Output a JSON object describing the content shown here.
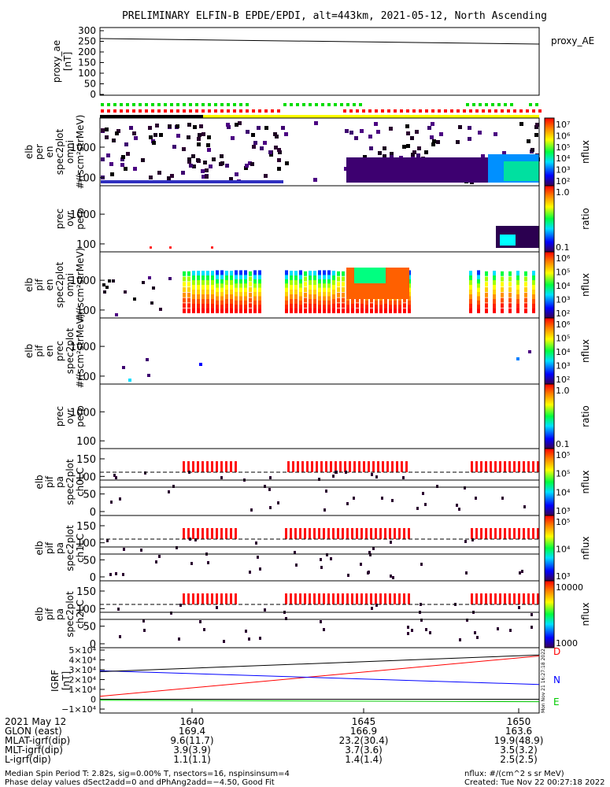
{
  "title": "PRELIMINARY ELFIN-B EPDE/EPDI, alt=443km, 2021-05-12, North Ascending",
  "panels": {
    "ae": {
      "ylabel": [
        "proxy_ae",
        "[nT]"
      ],
      "ticks": [
        "300",
        "250",
        "200",
        "150",
        "100",
        "50",
        "0"
      ],
      "legend": "proxy_AE"
    },
    "p1": {
      "ylabel": [
        "elb",
        "per",
        "en",
        "spec2plot",
        "omni",
        "#/(scm²strMeV)"
      ],
      "ticks": [
        "1000",
        "100"
      ],
      "cbar": {
        "label": "nflux",
        "ticks": [
          "10⁷",
          "10⁶",
          "10⁵",
          "10⁴",
          "10³",
          "10²"
        ]
      }
    },
    "p2": {
      "ylabel": [
        "prec",
        "ovr",
        "perp"
      ],
      "ticks": [
        "1000",
        "100"
      ],
      "cbar": {
        "label": "ratio",
        "ticks": [
          "1.0",
          "0.1"
        ]
      }
    },
    "p3": {
      "ylabel": [
        "elb",
        "pif",
        "en",
        "spec2plot",
        "omni",
        "#/(scm²strMeV)"
      ],
      "ticks": [
        "1000",
        "100"
      ],
      "cbar": {
        "label": "nflux",
        "ticks": [
          "10⁶",
          "10⁵",
          "10⁴",
          "10³",
          "10²"
        ]
      }
    },
    "p4": {
      "ylabel": [
        "elb",
        "pif",
        "en",
        "prec",
        "spec2plot",
        "#/(scm²strMeV)"
      ],
      "ticks": [
        "1000",
        "100"
      ],
      "cbar": {
        "label": "nflux",
        "ticks": [
          "10⁶",
          "10⁵",
          "10⁴",
          "10³",
          "10²"
        ]
      }
    },
    "p5": {
      "ylabel": [
        "prec",
        "ovr",
        "perp"
      ],
      "ticks": [
        "1000",
        "100"
      ],
      "cbar": {
        "label": "ratio",
        "ticks": [
          "1.0",
          "0.1"
        ]
      }
    },
    "p6": {
      "ylabel": [
        "elb",
        "pif",
        "pa",
        "spec2plot",
        "ch0LC"
      ],
      "ticks": [
        "150",
        "100",
        "50",
        "0"
      ],
      "cbar": {
        "label": "nflux",
        "ticks": [
          "10⁵",
          "10⁵",
          "10⁴",
          "10³"
        ]
      }
    },
    "p7": {
      "ylabel": [
        "elb",
        "pif",
        "pa",
        "spec2plot",
        "ch1LC"
      ],
      "ticks": [
        "150",
        "100",
        "50",
        "0"
      ],
      "cbar": {
        "label": "nflux",
        "ticks": [
          "10⁵",
          "10⁴",
          "10³"
        ]
      }
    },
    "p8": {
      "ylabel": [
        "elb",
        "pif",
        "pa",
        "spec2plot",
        "ch2LC"
      ],
      "ticks": [
        "150",
        "100",
        "50",
        "0"
      ],
      "cbar": {
        "label": "nflux",
        "ticks": [
          "10000",
          "1000"
        ]
      }
    },
    "igrf": {
      "ylabel": [
        "IGRF",
        "[nT]"
      ],
      "ticks": [
        "5×10⁴",
        "4×10⁴",
        "3×10⁴",
        "2×10⁴",
        "1×10⁴",
        "0",
        "−1×10⁴"
      ],
      "legend": [
        "D",
        "N",
        "E"
      ]
    }
  },
  "colors": {
    "D": "#ff0000",
    "N": "#0000ff",
    "E": "#00cc00",
    "yellow": "#ffff00",
    "green_bar": "#00dd00",
    "red_bar": "#ff0000"
  },
  "timeaxis": {
    "rows": [
      {
        "label": "2021 May 12",
        "values": [
          "1640",
          "1645",
          "1650"
        ]
      },
      {
        "label": "GLON (east)",
        "values": [
          "169.4",
          "166.9",
          "163.6"
        ]
      },
      {
        "label": "MLAT-igrf(dip)",
        "values": [
          "9.6(11.7)",
          "23.2(30.4)",
          "19.9(48.9)"
        ]
      },
      {
        "label": "MLT-igrf(dip)",
        "values": [
          "3.9(3.9)",
          "3.7(3.6)",
          "3.5(3.2)"
        ]
      },
      {
        "label": "L-igrf(dip)",
        "values": [
          "1.1(1.1)",
          "1.4(1.4)",
          "2.5(2.5)"
        ]
      }
    ]
  },
  "footer": {
    "left1": "Median Spin Period T: 2.82s, sig=0.00% T, nsectors=16, nspinsinsum=4",
    "left2": "Phase delay values dSect2add=0 and dPhAng2add=−4.50, Good Fit",
    "right1": "nflux: #/(cm^2 s sr MeV)",
    "right2": "Created: Tue Nov 22 00:27:18 2022",
    "vertical": "Mon Nov 21 16:27:18 2022"
  },
  "chart_data": [
    {
      "type": "line",
      "name_note": "proxy_AE",
      "x": [
        "16:37.5",
        "16:50.7"
      ],
      "values": [
        245,
        232
      ],
      "ylim": [
        0,
        300
      ]
    },
    {
      "type": "line",
      "x": [
        "16:37.5",
        "16:50.7"
      ],
      "series": [
        {
          "name": "D",
          "values": [
            3000,
            44000
          ]
        },
        {
          "name": "N",
          "values": [
            29000,
            15000
          ]
        },
        {
          "name": "E",
          "values": [
            -1000,
            -2500
          ]
        }
      ],
      "ylim": [
        -10000,
        50000
      ]
    },
    {
      "type": "heatmap",
      "note": "spectrogram panels p1-p8",
      "xlim": [
        "16:37.5",
        "16:50.7"
      ]
    }
  ]
}
